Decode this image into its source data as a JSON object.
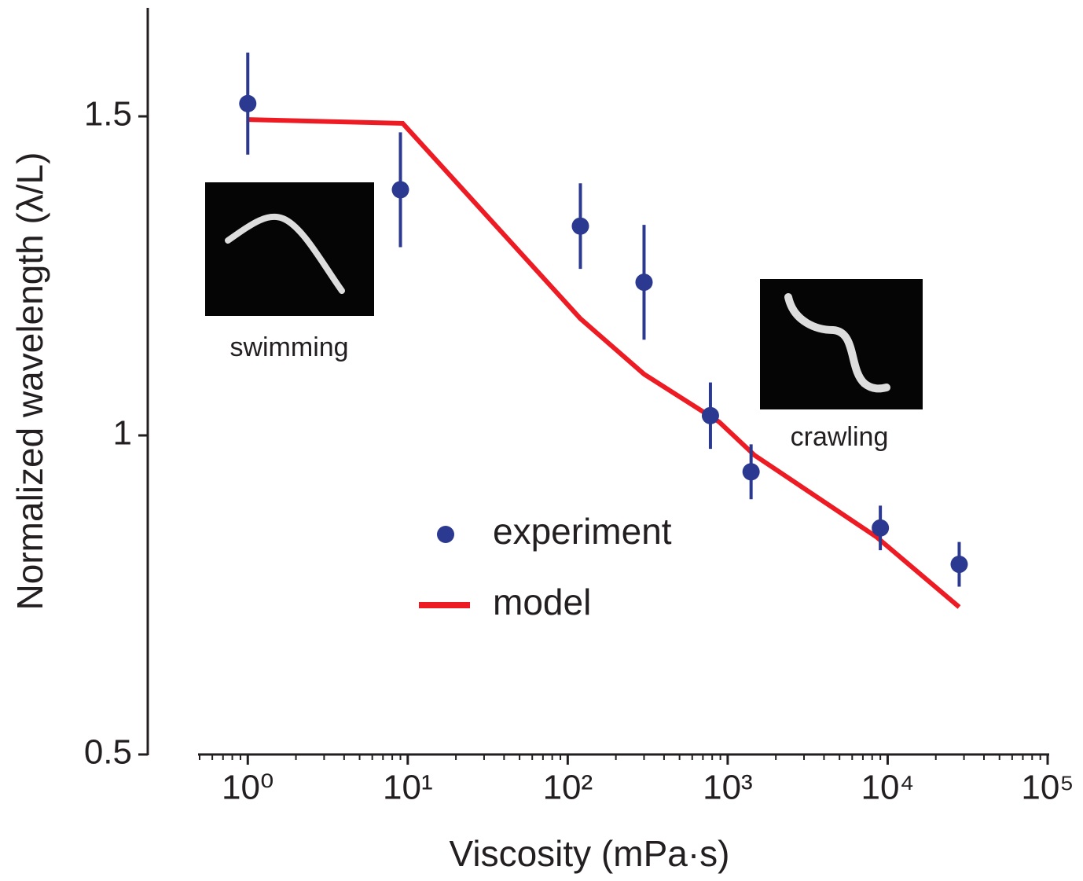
{
  "chart_data": {
    "type": "scatter",
    "xlabel": "Viscosity (mPa·s)",
    "ylabel": "Normalized wavelength (λ/L)",
    "xscale": "log",
    "xlim": [
      0.5,
      100000
    ],
    "ylim": [
      0.5,
      1.67
    ],
    "xticks": [
      {
        "value": 1,
        "label": "10⁰"
      },
      {
        "value": 10,
        "label": "10¹"
      },
      {
        "value": 100,
        "label": "10²"
      },
      {
        "value": 1000,
        "label": "10³"
      },
      {
        "value": 10000,
        "label": "10⁴"
      },
      {
        "value": 100000,
        "label": "10⁵"
      }
    ],
    "xminor_ticks": [
      0.5,
      0.6,
      0.7,
      0.8,
      0.9,
      2,
      3,
      4,
      5,
      6,
      7,
      8,
      9,
      20,
      30,
      40,
      50,
      60,
      70,
      80,
      90,
      200,
      300,
      400,
      500,
      600,
      700,
      800,
      900,
      2000,
      3000,
      4000,
      5000,
      6000,
      7000,
      8000,
      9000,
      20000,
      30000,
      40000,
      50000,
      60000,
      70000,
      80000,
      90000
    ],
    "yticks": [
      0.5,
      1,
      1.5
    ],
    "legend": "center",
    "annotations": [
      "swimming",
      "crawling"
    ],
    "series": [
      {
        "name": "experiment",
        "color": "#2b3990",
        "marker": "circle",
        "x": [
          1,
          9,
          120,
          300,
          780,
          1400,
          9000,
          28000
        ],
        "values": [
          1.52,
          1.385,
          1.328,
          1.24,
          1.031,
          0.943,
          0.855,
          0.798
        ],
        "errors": [
          0.08,
          0.09,
          0.067,
          0.09,
          0.052,
          0.043,
          0.035,
          0.035
        ]
      },
      {
        "name": "model",
        "color": "#ed1c24",
        "marker": "line",
        "x": [
          1,
          9.3,
          120,
          300,
          885,
          1470,
          8500,
          28000
        ],
        "values": [
          1.495,
          1.489,
          1.183,
          1.096,
          1.021,
          0.969,
          0.841,
          0.731
        ]
      }
    ]
  }
}
